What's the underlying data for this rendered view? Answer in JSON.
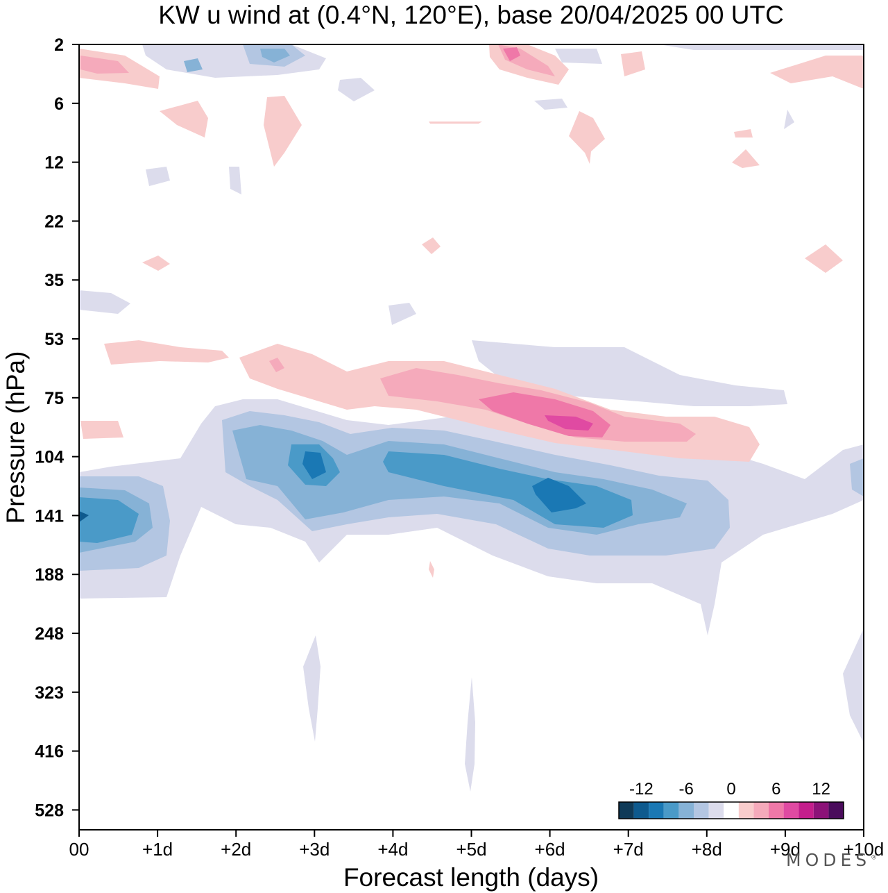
{
  "brand": "MODES",
  "chart_data": {
    "type": "heatmap",
    "title": "KW u wind at (0.4°N, 120°E),  base 20/04/2025  00 UTC",
    "xlabel": "Forecast length (days)",
    "ylabel": "Pressure (hPa)",
    "x_ticks": [
      "00",
      "+1d",
      "+2d",
      "+3d",
      "+4d",
      "+5d",
      "+6d",
      "+7d",
      "+8d",
      "+9d",
      "+10d"
    ],
    "xlim": [
      0,
      10
    ],
    "y_ticks": [
      "2",
      "6",
      "12",
      "22",
      "35",
      "53",
      "75",
      "104",
      "141",
      "188",
      "248",
      "323",
      "416",
      "528"
    ],
    "y_direction": "pressure increasing downward",
    "colorbar": {
      "labels": [
        "-12",
        "-6",
        "0",
        "6",
        "12"
      ],
      "levels": [
        -14,
        -12,
        -10,
        -8,
        -6,
        -4,
        -2,
        0,
        2,
        4,
        6,
        8,
        10,
        12,
        14
      ],
      "colors": [
        "#0f3a58",
        "#0e5a8e",
        "#1a78b4",
        "#4a9ac8",
        "#86b2d6",
        "#b3c6e2",
        "#dcdcec",
        "#ffffff",
        "#f8cccc",
        "#f5aabb",
        "#ef78a8",
        "#e04aa2",
        "#c41e8c",
        "#8c1278",
        "#4a0c5c"
      ]
    },
    "features": [
      {
        "name": "westerly jet core",
        "value": 10,
        "x_range": [
          5.1,
          6.5
        ],
        "pressure_hPa": 86
      },
      {
        "name": "westerly band",
        "value": 4,
        "x_range": [
          0.3,
          9.8
        ],
        "pressure_hPa": [
          55,
          95
        ]
      },
      {
        "name": "easterly core",
        "value": -12,
        "x_range": [
          5.9,
          6.5
        ],
        "pressure_hPa": 125
      },
      {
        "name": "easterly band",
        "value": -8,
        "x_range": [
          0,
          9.3
        ],
        "pressure_hPa": [
          85,
          180
        ]
      },
      {
        "name": "upper stratosphere mixed",
        "value": 6,
        "x_range": [
          0,
          10
        ],
        "pressure_hPa": [
          2,
          12
        ]
      }
    ]
  }
}
